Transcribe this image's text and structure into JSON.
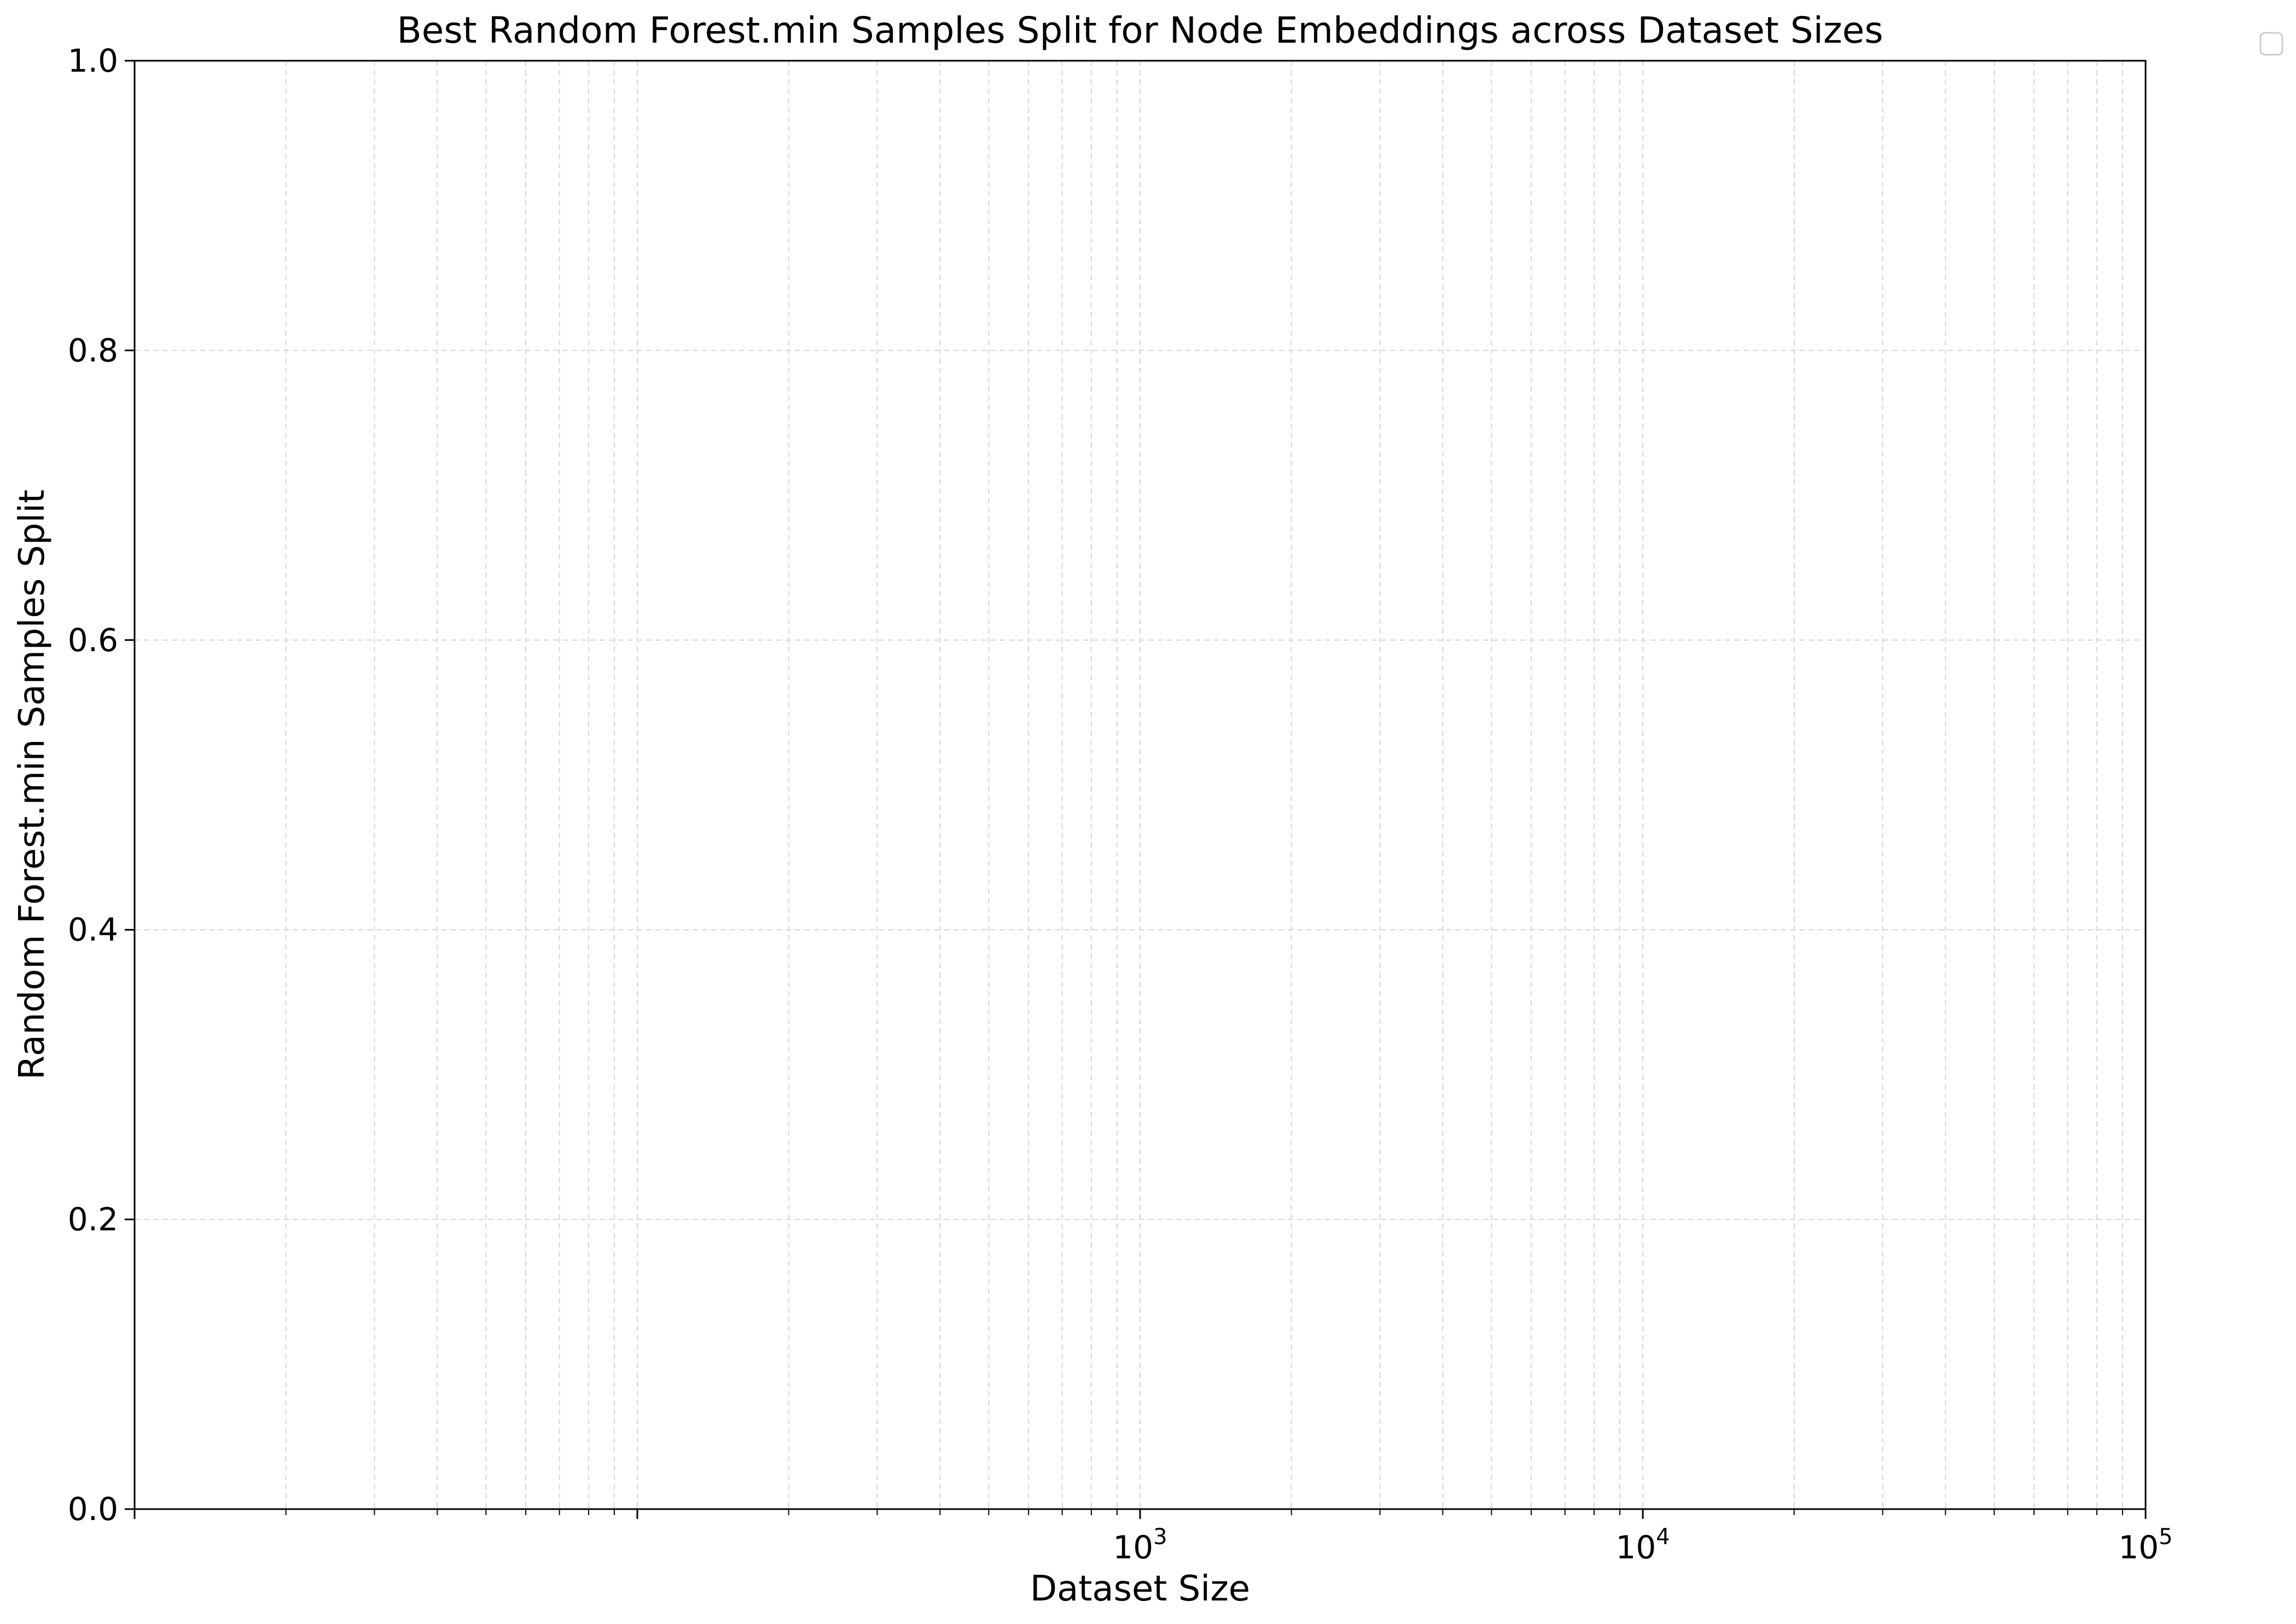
{
  "chart_data": {
    "type": "scatter",
    "title": "Best Random Forest.min Samples Split for Node Embeddings across Dataset Sizes",
    "xlabel": "Dataset Size",
    "ylabel": "Random Forest.min Samples Split",
    "xscale": "log",
    "xlim": [
      10,
      100000
    ],
    "ylim": [
      0,
      1
    ],
    "x_major_ticks": [
      {
        "value": 1000,
        "base": "10",
        "exp": "3"
      },
      {
        "value": 10000,
        "base": "10",
        "exp": "4"
      },
      {
        "value": 100000,
        "base": "10",
        "exp": "5"
      }
    ],
    "y_ticks": [
      {
        "value": 0.0,
        "label": "0.0"
      },
      {
        "value": 0.2,
        "label": "0.2"
      },
      {
        "value": 0.4,
        "label": "0.4"
      },
      {
        "value": 0.6,
        "label": "0.6"
      },
      {
        "value": 0.8,
        "label": "0.8"
      },
      {
        "value": 1.0,
        "label": "1.0"
      }
    ],
    "grid": true,
    "legend": {
      "position": "outside-top-right",
      "entries": []
    },
    "series": []
  }
}
